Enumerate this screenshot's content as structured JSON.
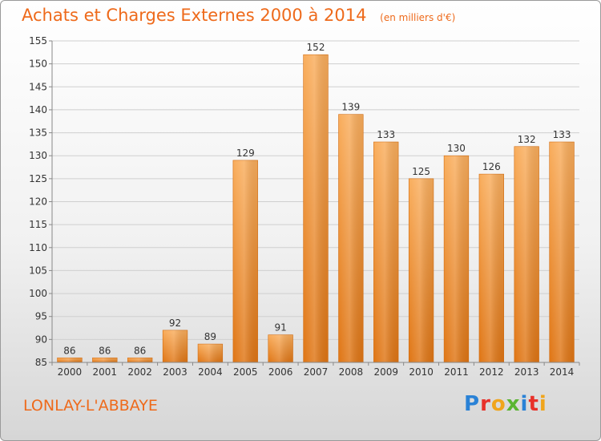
{
  "header": {
    "title": "Achats et Charges Externes 2000 à 2014",
    "unit": "(en milliers d'€)"
  },
  "footer": {
    "commune": "LONLAY-L'ABBAYE",
    "logo_text": "Proxiti"
  },
  "colors": {
    "title": "#ee6a1b",
    "bar_light": "#f8a855",
    "bar_dark": "#e07a18",
    "grid": "#c8c8c8",
    "axis": "#888888"
  },
  "chart_data": {
    "type": "bar",
    "title": "Achats et Charges Externes 2000 à 2014",
    "subtitle": "(en milliers d'€)",
    "categories": [
      "2000",
      "2001",
      "2002",
      "2003",
      "2004",
      "2005",
      "2006",
      "2007",
      "2008",
      "2009",
      "2010",
      "2011",
      "2012",
      "2013",
      "2014"
    ],
    "values": [
      86,
      86,
      86,
      92,
      89,
      129,
      91,
      152,
      139,
      133,
      125,
      130,
      126,
      132,
      133
    ],
    "ylim": [
      85,
      155
    ],
    "yticks": [
      85,
      90,
      95,
      100,
      105,
      110,
      115,
      120,
      125,
      130,
      135,
      140,
      145,
      150,
      155
    ],
    "grid": true,
    "legend": "none"
  }
}
